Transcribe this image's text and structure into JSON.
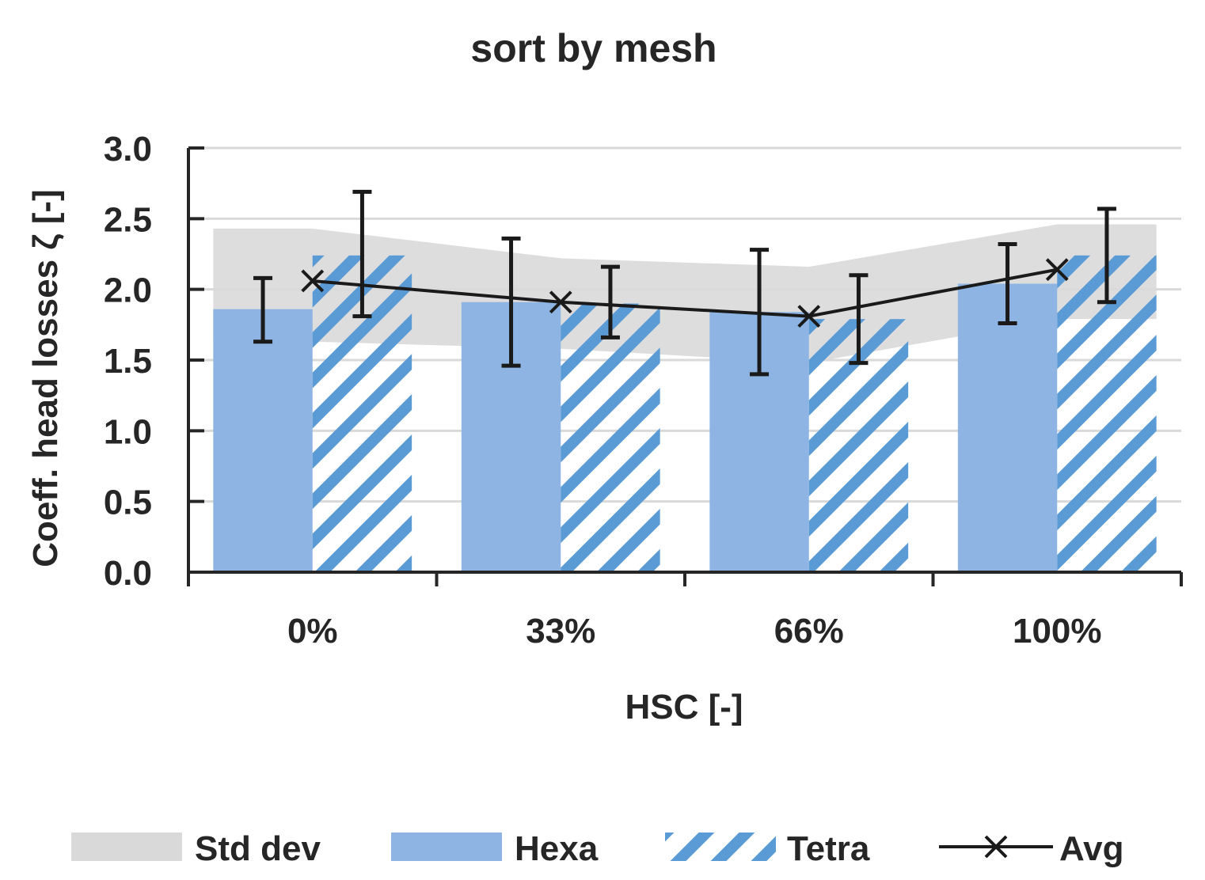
{
  "chart_data": {
    "type": "bar",
    "title": "sort by mesh",
    "xlabel": "HSC [-]",
    "ylabel": "Coeff. head losses ζ [-]",
    "ylim": [
      0,
      3.0
    ],
    "yticks": [
      "0.0",
      "0.5",
      "1.0",
      "1.5",
      "2.0",
      "2.5",
      "3.0"
    ],
    "categories": [
      "0%",
      "33%",
      "66%",
      "100%"
    ],
    "series": [
      {
        "name": "Hexa",
        "style": "solid",
        "color": "#8db4e2",
        "values": [
          1.86,
          1.91,
          1.84,
          2.04
        ],
        "err_low": [
          1.63,
          1.46,
          1.4,
          1.76
        ],
        "err_high": [
          2.08,
          2.36,
          2.28,
          2.32
        ]
      },
      {
        "name": "Tetra",
        "style": "hatched",
        "color": "#5b9bd5",
        "values": [
          2.24,
          1.9,
          1.79,
          2.24
        ],
        "err_low": [
          1.81,
          1.66,
          1.48,
          1.91
        ],
        "err_high": [
          2.69,
          2.16,
          2.1,
          2.57
        ]
      }
    ],
    "avg": {
      "name": "Avg",
      "values": [
        2.06,
        1.91,
        1.81,
        2.14
      ]
    },
    "std_band": {
      "name": "Std dev",
      "lower": [
        1.63,
        1.58,
        1.48,
        1.79
      ],
      "upper": [
        2.43,
        2.22,
        2.16,
        2.46
      ]
    },
    "legend": [
      "Std dev",
      "Hexa",
      "Tetra",
      "Avg"
    ],
    "legend_position": "bottom",
    "grid": true,
    "colors": {
      "band": "#d9d9d9",
      "grid": "#d9d9d9",
      "axis": "#262626",
      "line": "#1a1a1a"
    }
  }
}
